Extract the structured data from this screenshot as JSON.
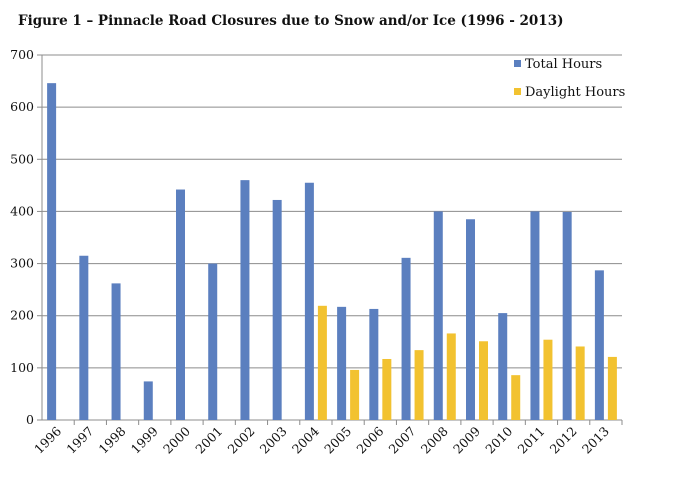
{
  "chart_data": {
    "type": "bar",
    "title": "Figure 1 – Pinnacle Road Closures due to Snow and/or Ice (1996 - 2013)",
    "xlabel": "",
    "ylabel": "",
    "ylim": [
      0,
      700
    ],
    "yticks": [
      0,
      100,
      200,
      300,
      400,
      500,
      600,
      700
    ],
    "grid": true,
    "legend_position": "top-right",
    "categories": [
      "1996",
      "1997",
      "1998",
      "1999",
      "2000",
      "2001",
      "2002",
      "2003",
      "2004",
      "2005",
      "2006",
      "2007",
      "2008",
      "2009",
      "2010",
      "2011",
      "2012",
      "2013"
    ],
    "series": [
      {
        "name": "Total Hours",
        "color": "#5B7FBF",
        "values": [
          646,
          315,
          262,
          74,
          442,
          300,
          460,
          422,
          455,
          217,
          213,
          311,
          400,
          385,
          205,
          400,
          399,
          287
        ]
      },
      {
        "name": "Daylight Hours",
        "color": "#F2C230",
        "values": [
          0,
          0,
          0,
          0,
          0,
          0,
          0,
          0,
          219,
          96,
          117,
          134,
          166,
          151,
          86,
          154,
          141,
          121
        ]
      }
    ]
  }
}
